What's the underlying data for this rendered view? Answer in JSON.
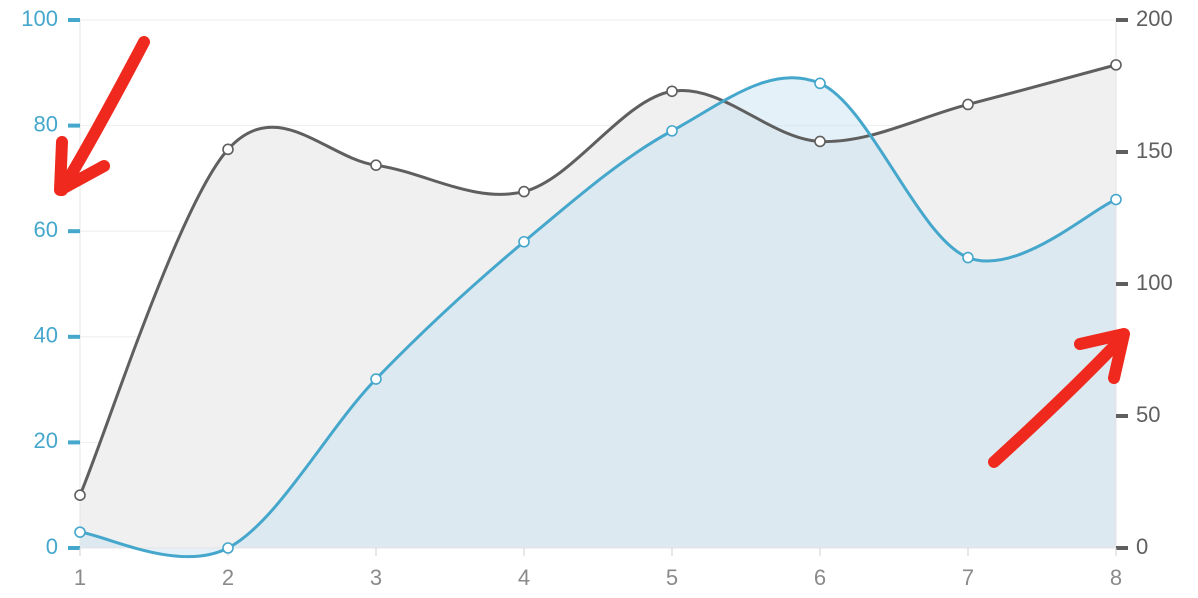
{
  "chart_data": {
    "type": "area",
    "x": [
      1,
      2,
      3,
      4,
      5,
      6,
      7,
      8
    ],
    "xlim": [
      1,
      8
    ],
    "x_ticks": [
      "1",
      "2",
      "3",
      "4",
      "5",
      "6",
      "7",
      "8"
    ],
    "y_left": {
      "ylim": [
        0,
        100
      ],
      "ticks": [
        "0",
        "20",
        "40",
        "60",
        "80",
        "100"
      ]
    },
    "y_right": {
      "ylim": [
        0,
        200
      ],
      "ticks": [
        "0",
        "50",
        "100",
        "150",
        "200"
      ]
    },
    "series": [
      {
        "axis": "right",
        "color": "#5f5f5f",
        "fill": "#f0f0f0",
        "values": [
          20,
          151,
          145,
          135,
          173,
          154,
          168,
          183
        ]
      },
      {
        "axis": "left",
        "color": "#46a7cc",
        "fill": "#c6dff0",
        "values": [
          3,
          0,
          32,
          58,
          79,
          88,
          55,
          66
        ]
      }
    ],
    "grid": true,
    "legend": "none",
    "annotations": [
      {
        "type": "arrow",
        "color": "#f0291e",
        "target": "left-axis"
      },
      {
        "type": "arrow",
        "color": "#f0291e",
        "target": "right-axis"
      }
    ]
  }
}
